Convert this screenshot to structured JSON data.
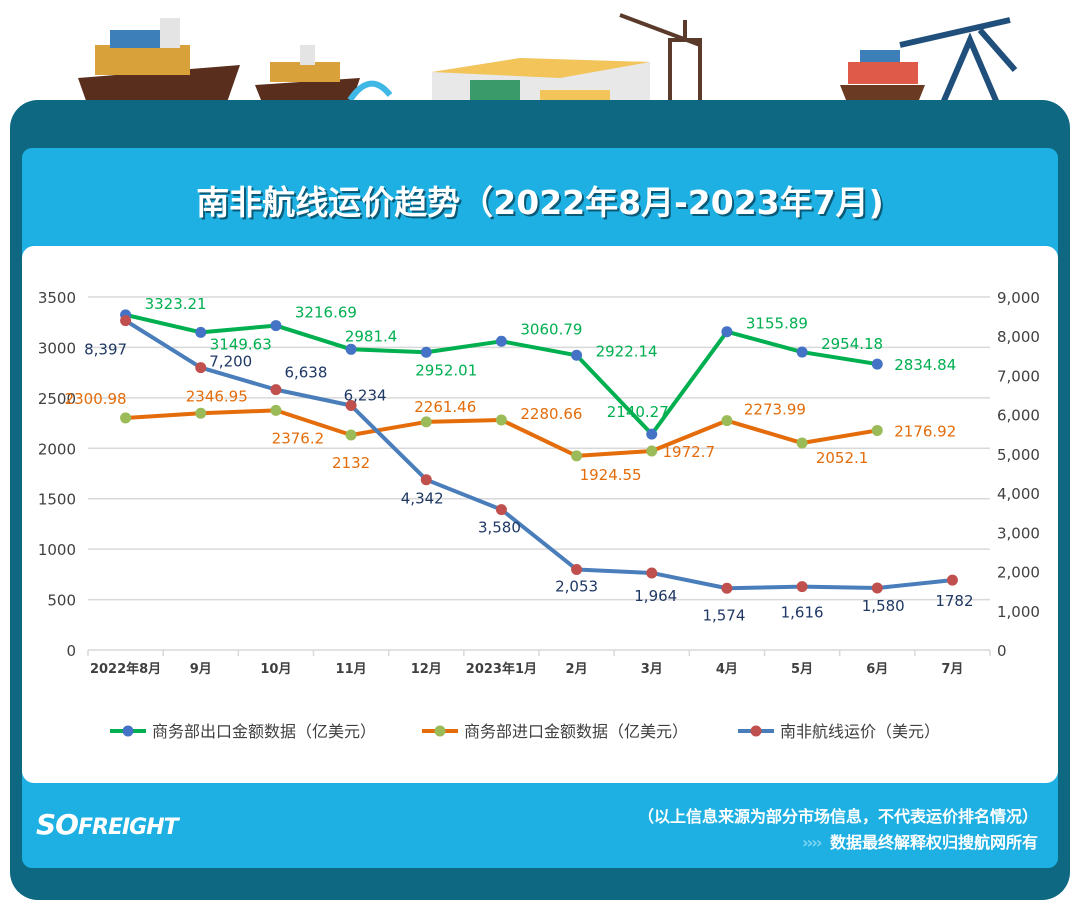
{
  "title": "南非航线运价趋势（2022年8月-2023年7月)",
  "footer": {
    "note": "（以上信息来源为部分市场信息，不代表运价排名情况）",
    "rights": "数据最终解释权归搜航网所有",
    "logo": "SOFREIGHT"
  },
  "colors": {
    "frame": "#0e6882",
    "panel": "#1eb0e2",
    "export": "#00b050",
    "import": "#e46c0a",
    "freight": "#4a7ebb"
  },
  "chart_data": {
    "type": "line",
    "categories": [
      "2022年8月",
      "9月",
      "10月",
      "11月",
      "12月",
      "2023年1月",
      "2月",
      "3月",
      "4月",
      "5月",
      "6月",
      "7月"
    ],
    "y_left": {
      "range": [
        0,
        3500
      ],
      "ticks": [
        "0",
        "500",
        "1000",
        "1500",
        "2000",
        "2500",
        "3000",
        "3500"
      ]
    },
    "y_right": {
      "range": [
        0,
        9000
      ],
      "ticks": [
        "0",
        "1,000",
        "2,000",
        "3,000",
        "4,000",
        "5,000",
        "6,000",
        "7,000",
        "8,000",
        "9,000"
      ]
    },
    "grid": true,
    "legend_placement": "bottom",
    "series": [
      {
        "name": "商务部出口金额数据（亿美元）",
        "axis": "left",
        "color": "#00b050",
        "marker": "#4472c4",
        "values": [
          3323.21,
          3149.63,
          3216.69,
          2981.4,
          2952.01,
          3060.79,
          2922.14,
          2140.27,
          3155.89,
          2954.18,
          2834.84,
          null
        ],
        "labels": [
          "3323.21",
          "3149.63",
          "3216.69",
          "2981.4",
          "2952.01",
          "3060.79",
          "2922.14",
          "2140.27",
          "3155.89",
          "2954.18",
          "2834.84",
          ""
        ]
      },
      {
        "name": "商务部进口金额数据（亿美元）",
        "axis": "left",
        "color": "#e46c0a",
        "marker": "#9bbb59",
        "values": [
          2300.98,
          2346.95,
          2376.2,
          2132,
          2261.46,
          2280.66,
          1924.55,
          1972.7,
          2273.99,
          2052.1,
          2176.92,
          null
        ],
        "labels": [
          "2300.98",
          "2346.95",
          "2376.2",
          "2132",
          "2261.46",
          "2280.66",
          "1924.55",
          "1972.7",
          "2273.99",
          "2052.1",
          "2176.92",
          ""
        ]
      },
      {
        "name": "南非航线运价（美元）",
        "axis": "right",
        "color": "#4a7ebb",
        "marker": "#c0504d",
        "values": [
          8397,
          7200,
          6638,
          6234,
          4342,
          3580,
          2053,
          1964,
          1574,
          1616,
          1580,
          1782
        ],
        "labels": [
          "8,397",
          "7,200",
          "6,638",
          "6,234",
          "4,342",
          "3,580",
          "2,053",
          "1,964",
          "1,574",
          "1,616",
          "1,580",
          "1782"
        ]
      }
    ]
  }
}
